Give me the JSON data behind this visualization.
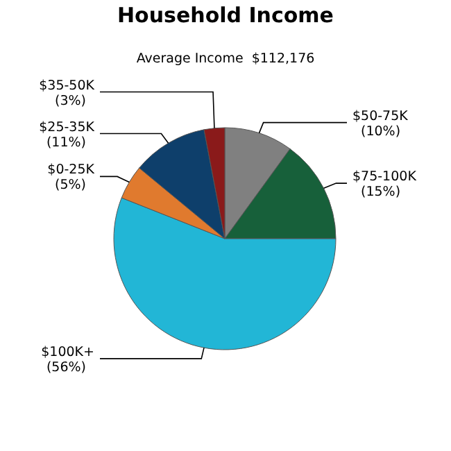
{
  "chart_data": {
    "type": "pie",
    "title": "Household Income",
    "subtitle": "Average Income  $112,176",
    "categories": [
      "$50-75K",
      "$75-100K",
      "$100K+",
      "$0-25K",
      "$25-35K",
      "$35-50K"
    ],
    "values": [
      10,
      15,
      56,
      5,
      11,
      3
    ],
    "value_labels": [
      "(10%)",
      "(15%)",
      "(56%)",
      "(5%)",
      "(11%)",
      "(3%)"
    ],
    "colors": [
      "#808080",
      "#17603a",
      "#22b6d6",
      "#e07a2e",
      "#0e3f6b",
      "#8a1a1a"
    ]
  }
}
